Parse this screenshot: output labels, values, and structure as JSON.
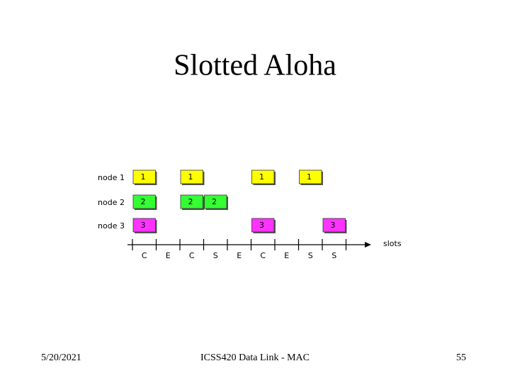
{
  "header": {
    "title": "Slotted Aloha"
  },
  "diagram": {
    "nodes": [
      {
        "label": "node 1",
        "color": "#ffff00",
        "frames": [
          "1",
          null,
          "1",
          null,
          null,
          "1",
          null,
          "1",
          null
        ]
      },
      {
        "label": "node 2",
        "color": "#33ff33",
        "frames": [
          "2",
          null,
          "2",
          "2",
          null,
          null,
          null,
          null,
          null
        ]
      },
      {
        "label": "node 3",
        "color": "#ff33ff",
        "frames": [
          "3",
          null,
          null,
          null,
          null,
          "3",
          null,
          null,
          "3"
        ]
      }
    ],
    "outcomes": [
      "C",
      "E",
      "C",
      "S",
      "E",
      "C",
      "E",
      "S",
      "S"
    ],
    "axis_label": "slots"
  },
  "footer": {
    "date": "5/20/2021",
    "course": "ICSS420 Data Link - MAC",
    "page": "55"
  }
}
